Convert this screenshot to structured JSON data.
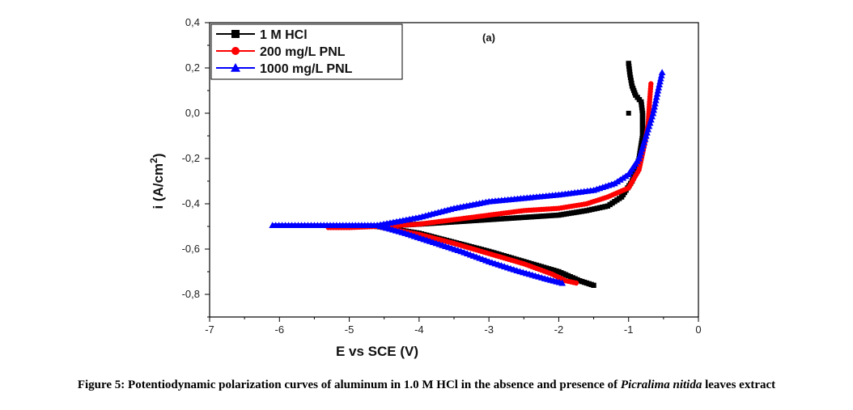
{
  "chart_data": {
    "type": "line",
    "panel_label": "(a)",
    "xlabel": "E vs SCE (V)",
    "ylabel": "i (A/cm²)",
    "ylabel_main": "i (A/cm",
    "ylabel_sup": "2",
    "ylabel_close": ")",
    "xlim": [
      -7,
      0
    ],
    "ylim": [
      -0.9,
      0.4
    ],
    "xticks": [
      -7,
      -6,
      -5,
      -4,
      -3,
      -2,
      -1,
      0
    ],
    "xtick_labels": [
      "-7",
      "-6",
      "-5",
      "-4",
      "-3",
      "-2",
      "-1",
      "0"
    ],
    "yticks": [
      -0.8,
      -0.6,
      -0.4,
      -0.2,
      0.0,
      0.2,
      0.4
    ],
    "ytick_labels": [
      "-0,8",
      "-0,6",
      "-0,4",
      "-0,2",
      "0,0",
      "0,2",
      "0,4"
    ],
    "legend_position": "top-left",
    "grid": false,
    "series": [
      {
        "name": "1 M HCl",
        "color": "#000000",
        "marker": "square",
        "anodic": [
          [
            -4.6,
            -0.5
          ],
          [
            -4.0,
            -0.49
          ],
          [
            -3.5,
            -0.48
          ],
          [
            -3.0,
            -0.47
          ],
          [
            -2.5,
            -0.46
          ],
          [
            -2.0,
            -0.45
          ],
          [
            -1.6,
            -0.43
          ],
          [
            -1.3,
            -0.41
          ],
          [
            -1.1,
            -0.37
          ],
          [
            -0.95,
            -0.3
          ],
          [
            -0.85,
            -0.2
          ],
          [
            -0.8,
            -0.1
          ],
          [
            -0.8,
            0.0
          ],
          [
            -0.82,
            0.05
          ],
          [
            -0.9,
            0.08
          ],
          [
            -0.95,
            0.12
          ],
          [
            -0.98,
            0.17
          ],
          [
            -1.0,
            0.22
          ]
        ],
        "cathodic": [
          [
            -4.6,
            -0.5
          ],
          [
            -4.0,
            -0.53
          ],
          [
            -3.5,
            -0.57
          ],
          [
            -3.0,
            -0.61
          ],
          [
            -2.5,
            -0.655
          ],
          [
            -2.0,
            -0.7
          ],
          [
            -1.7,
            -0.74
          ],
          [
            -1.5,
            -0.76
          ]
        ],
        "outlier": [
          -1.0,
          0.0
        ]
      },
      {
        "name": "200 mg/L PNL",
        "color": "#ff0000",
        "marker": "circle",
        "anodic": [
          [
            -5.3,
            -0.505
          ],
          [
            -5.0,
            -0.505
          ],
          [
            -4.6,
            -0.5
          ],
          [
            -4.0,
            -0.49
          ],
          [
            -3.5,
            -0.47
          ],
          [
            -3.0,
            -0.45
          ],
          [
            -2.5,
            -0.43
          ],
          [
            -2.0,
            -0.42
          ],
          [
            -1.6,
            -0.4
          ],
          [
            -1.3,
            -0.37
          ],
          [
            -1.0,
            -0.33
          ],
          [
            -0.85,
            -0.25
          ],
          [
            -0.78,
            -0.15
          ],
          [
            -0.72,
            -0.05
          ],
          [
            -0.7,
            0.05
          ],
          [
            -0.68,
            0.13
          ]
        ],
        "cathodic": [
          [
            -4.6,
            -0.5
          ],
          [
            -4.0,
            -0.535
          ],
          [
            -3.5,
            -0.575
          ],
          [
            -3.0,
            -0.62
          ],
          [
            -2.5,
            -0.665
          ],
          [
            -2.1,
            -0.71
          ],
          [
            -1.9,
            -0.74
          ],
          [
            -1.75,
            -0.75
          ]
        ]
      },
      {
        "name": "1000 mg/L PNL",
        "color": "#0000ff",
        "marker": "triangle",
        "anodic": [
          [
            -6.1,
            -0.495
          ],
          [
            -5.5,
            -0.495
          ],
          [
            -5.0,
            -0.495
          ],
          [
            -4.6,
            -0.495
          ],
          [
            -4.0,
            -0.46
          ],
          [
            -3.5,
            -0.42
          ],
          [
            -3.0,
            -0.39
          ],
          [
            -2.5,
            -0.375
          ],
          [
            -2.0,
            -0.36
          ],
          [
            -1.5,
            -0.34
          ],
          [
            -1.2,
            -0.31
          ],
          [
            -1.0,
            -0.27
          ],
          [
            -0.85,
            -0.2
          ],
          [
            -0.75,
            -0.1
          ],
          [
            -0.65,
            0.0
          ],
          [
            -0.58,
            0.1
          ],
          [
            -0.52,
            0.18
          ]
        ],
        "cathodic": [
          [
            -4.6,
            -0.495
          ],
          [
            -4.2,
            -0.53
          ],
          [
            -3.8,
            -0.57
          ],
          [
            -3.4,
            -0.61
          ],
          [
            -3.0,
            -0.655
          ],
          [
            -2.6,
            -0.695
          ],
          [
            -2.2,
            -0.73
          ],
          [
            -1.95,
            -0.75
          ]
        ]
      }
    ]
  },
  "caption": {
    "prefix": "Figure 5: Potentiodynamic polarization curves of aluminum in 1.0 M HCl in the absence and presence of ",
    "species": "Picralima nitida",
    "suffix": " leaves extract"
  }
}
